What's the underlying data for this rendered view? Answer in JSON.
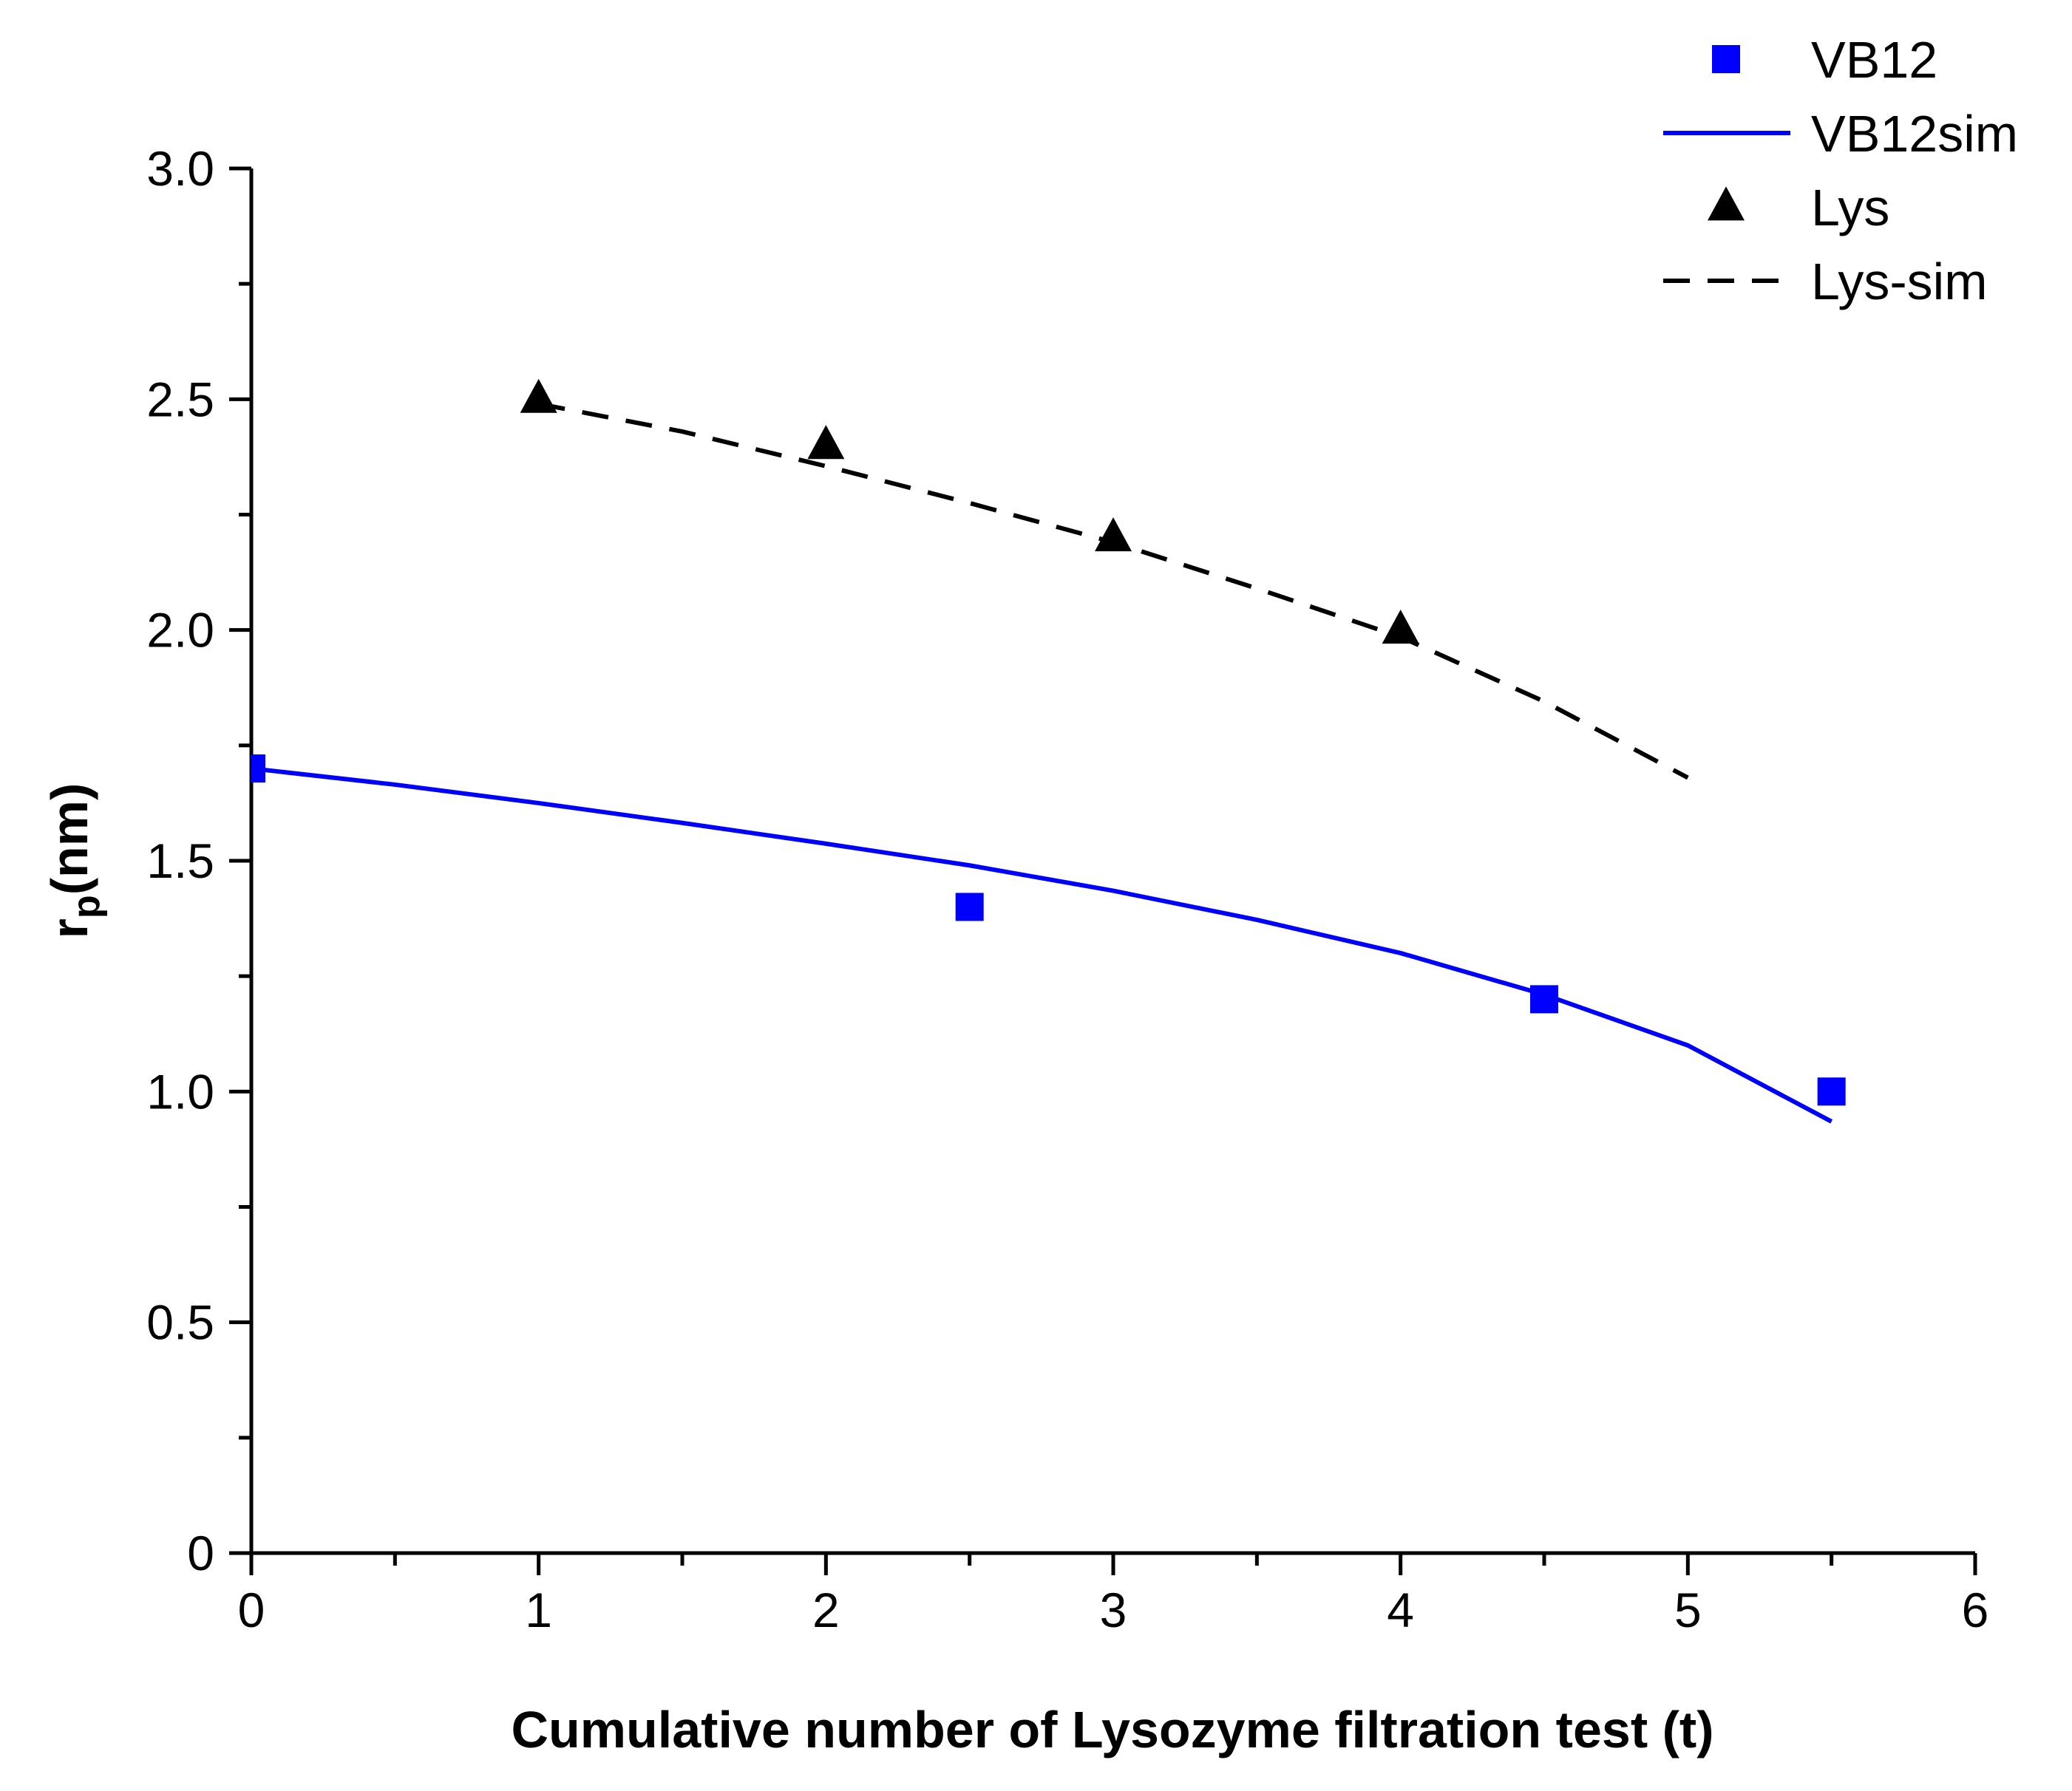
{
  "chart_data": {
    "type": "scatter",
    "title": "",
    "xlabel": "Cumulative number of Lysozyme filtration test (t)",
    "ylabel_main": "r",
    "ylabel_sub": "p",
    "ylabel_unit": "(nm)",
    "xlim": [
      0,
      6
    ],
    "ylim": [
      0,
      3.0
    ],
    "x_ticks": [
      0,
      1,
      2,
      3,
      4,
      5,
      6
    ],
    "x_tick_labels": [
      "0",
      "1",
      "2",
      "3",
      "4",
      "5",
      "6"
    ],
    "y_ticks": [
      0,
      0.5,
      1.0,
      1.5,
      2.0,
      2.5,
      3.0
    ],
    "y_tick_labels": [
      "0",
      "0.5",
      "1.0",
      "1.5",
      "2.0",
      "2.5",
      "3.0"
    ],
    "grid": false,
    "legend_position": "top-right",
    "series": [
      {
        "name": "VB12",
        "kind": "marker",
        "marker": "square",
        "color": "#0000ff",
        "x": [
          0,
          2.5,
          4.5,
          5.5
        ],
        "y": [
          1.7,
          1.4,
          1.2,
          1.0
        ]
      },
      {
        "name": "VB12sim",
        "kind": "line",
        "dash": "solid",
        "color": "#0000ff",
        "x": [
          0,
          0.5,
          1,
          1.5,
          2,
          2.5,
          3,
          3.5,
          4,
          4.5,
          5,
          5.5
        ],
        "y": [
          1.7,
          1.665,
          1.625,
          1.582,
          1.537,
          1.49,
          1.435,
          1.372,
          1.3,
          1.21,
          1.1,
          0.935
        ]
      },
      {
        "name": "Lys",
        "kind": "marker",
        "marker": "triangle",
        "color": "#000000",
        "x": [
          1,
          2,
          3,
          4
        ],
        "y": [
          2.5,
          2.4,
          2.2,
          2.0
        ]
      },
      {
        "name": "Lys-sim",
        "kind": "line",
        "dash": "dashed",
        "color": "#000000",
        "x": [
          1,
          1.5,
          2,
          2.5,
          3,
          3.5,
          4,
          4.5,
          5
        ],
        "y": [
          2.49,
          2.43,
          2.355,
          2.275,
          2.19,
          2.09,
          1.985,
          1.845,
          1.68
        ]
      }
    ]
  }
}
